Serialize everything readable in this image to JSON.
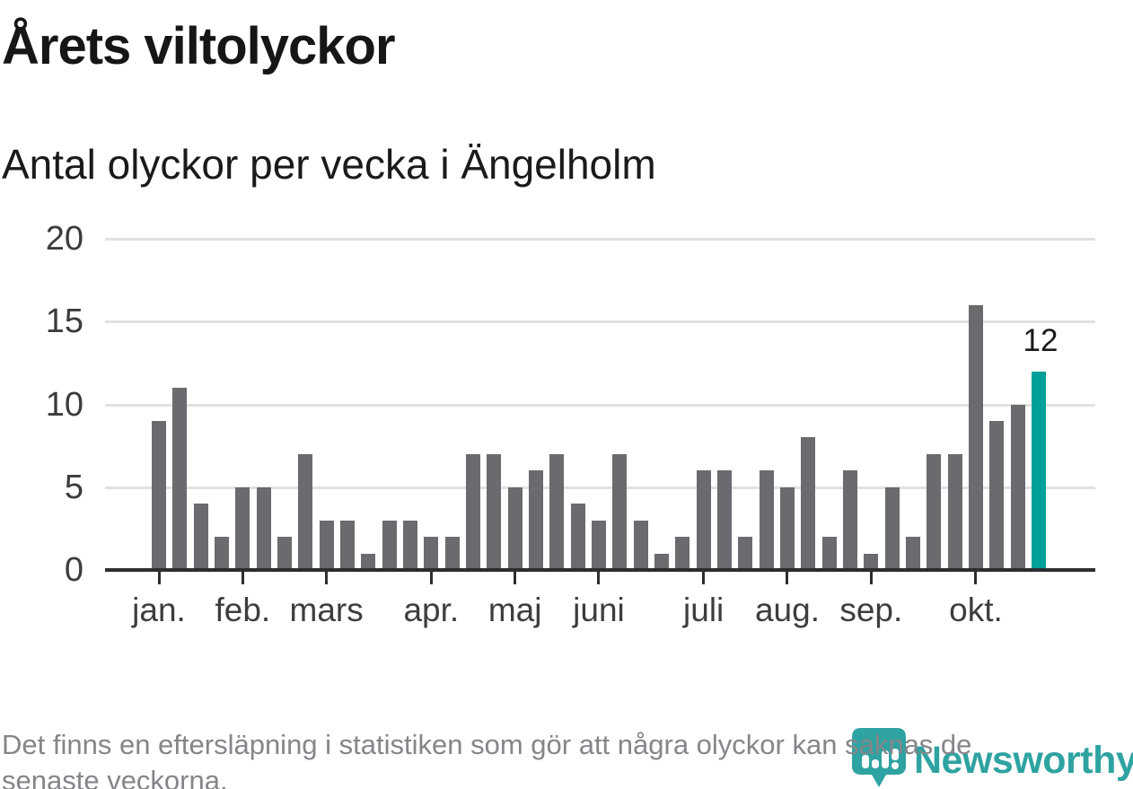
{
  "header": {
    "title": "Årets viltolyckor",
    "subtitle": "Antal olyckor per vecka i Ängelholm"
  },
  "chart_data": {
    "type": "bar",
    "title": "Årets viltolyckor",
    "subtitle": "Antal olyckor per vecka i Ängelholm",
    "x_unit": "vecka",
    "categories": [
      1,
      2,
      3,
      4,
      5,
      6,
      7,
      8,
      9,
      10,
      11,
      12,
      13,
      14,
      15,
      16,
      17,
      18,
      19,
      20,
      21,
      22,
      23,
      24,
      25,
      26,
      27,
      28,
      29,
      30,
      31,
      32,
      33,
      34,
      35,
      36,
      37,
      38,
      39,
      40,
      41,
      42,
      43
    ],
    "values": [
      9,
      11,
      4,
      2,
      5,
      5,
      2,
      7,
      3,
      3,
      1,
      3,
      3,
      2,
      2,
      7,
      7,
      5,
      6,
      7,
      4,
      3,
      7,
      3,
      1,
      2,
      6,
      6,
      2,
      6,
      5,
      8,
      2,
      6,
      1,
      5,
      2,
      7,
      7,
      16,
      9,
      10,
      12
    ],
    "highlight": {
      "index": 42,
      "label": "12",
      "color": "#00a09a"
    },
    "bar_color": "#6a6a6f",
    "ylim": [
      0,
      20
    ],
    "yticks": [
      0,
      5,
      10,
      15,
      20
    ],
    "x_month_ticks": [
      {
        "label": "jan.",
        "week": 1
      },
      {
        "label": "feb.",
        "week": 5
      },
      {
        "label": "mars",
        "week": 9
      },
      {
        "label": "apr.",
        "week": 14
      },
      {
        "label": "maj",
        "week": 18
      },
      {
        "label": "juni",
        "week": 22
      },
      {
        "label": "juli",
        "week": 27
      },
      {
        "label": "aug.",
        "week": 31
      },
      {
        "label": "sep.",
        "week": 35
      },
      {
        "label": "okt.",
        "week": 40
      }
    ],
    "grid": true,
    "legend": "none"
  },
  "footer": {
    "line1": "Det finns en eftersläpning i statistiken som gör att några olyckor kan saknas de",
    "line2": "senaste veckorna."
  },
  "logo": {
    "text": "Newsworthy",
    "color": "#2ea3a1"
  },
  "colors": {
    "bar": "#6a6a6f",
    "highlight": "#00a09a",
    "axis": "#2d2d30",
    "grid": "#e1e1e1",
    "footer_text": "#85858a",
    "logo_teal": "#2ea3a1"
  }
}
